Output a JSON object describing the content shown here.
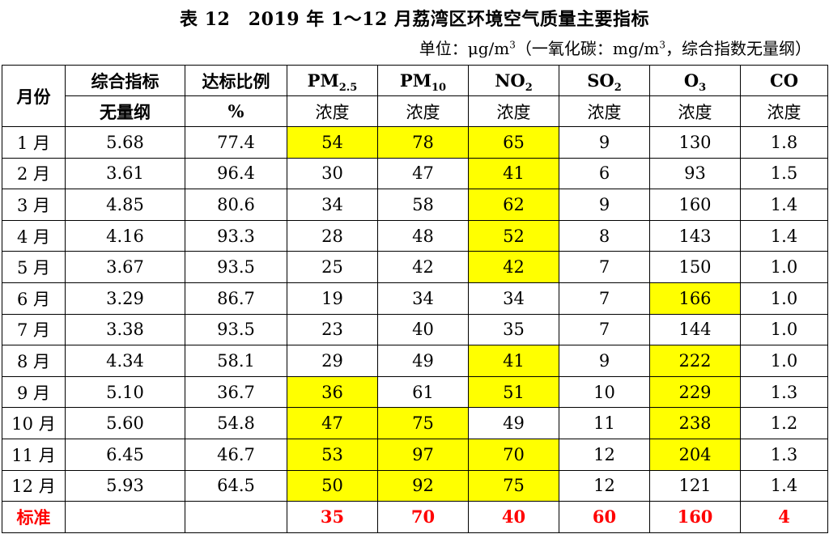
{
  "title": "表 12　2019 年 1～12 月荔湾区环境空气质量主要指标",
  "unit": {
    "prefix": "单位：μg/m",
    "sup1": "3",
    "middle": "（一氧化碳：mg/m",
    "sup2": "3",
    "suffix": "，综合指数无量纲）"
  },
  "header": {
    "month": "月份",
    "composite_top": "综合指标",
    "composite_bottom": "无量纲",
    "ratio_top": "达标比例",
    "ratio_bottom": "%",
    "pm25_base": "PM",
    "pm25_sub": "2.5",
    "pm10_base": "PM",
    "pm10_sub": "10",
    "no2_base": "NO",
    "no2_sub": "2",
    "so2_base": "SO",
    "so2_sub": "2",
    "o3_base": "O",
    "o3_sub": "3",
    "co": "CO",
    "concentration": "浓度"
  },
  "rows": [
    {
      "month": "1 月",
      "values": [
        "5.68",
        "77.4",
        "54",
        "78",
        "65",
        "9",
        "130",
        "1.8"
      ],
      "highlight": [
        false,
        false,
        true,
        true,
        true,
        false,
        false,
        false
      ]
    },
    {
      "month": "2 月",
      "values": [
        "3.61",
        "96.4",
        "30",
        "47",
        "41",
        "6",
        "93",
        "1.5"
      ],
      "highlight": [
        false,
        false,
        false,
        false,
        true,
        false,
        false,
        false
      ]
    },
    {
      "month": "3 月",
      "values": [
        "4.85",
        "80.6",
        "34",
        "58",
        "62",
        "9",
        "160",
        "1.4"
      ],
      "highlight": [
        false,
        false,
        false,
        false,
        true,
        false,
        false,
        false
      ]
    },
    {
      "month": "4 月",
      "values": [
        "4.16",
        "93.3",
        "28",
        "48",
        "52",
        "8",
        "143",
        "1.4"
      ],
      "highlight": [
        false,
        false,
        false,
        false,
        true,
        false,
        false,
        false
      ]
    },
    {
      "month": "5 月",
      "values": [
        "3.67",
        "93.5",
        "25",
        "42",
        "42",
        "7",
        "150",
        "1.0"
      ],
      "highlight": [
        false,
        false,
        false,
        false,
        true,
        false,
        false,
        false
      ]
    },
    {
      "month": "6 月",
      "values": [
        "3.29",
        "86.7",
        "19",
        "34",
        "34",
        "7",
        "166",
        "1.0"
      ],
      "highlight": [
        false,
        false,
        false,
        false,
        false,
        false,
        true,
        false
      ]
    },
    {
      "month": "7 月",
      "values": [
        "3.38",
        "93.5",
        "23",
        "40",
        "35",
        "7",
        "144",
        "1.0"
      ],
      "highlight": [
        false,
        false,
        false,
        false,
        false,
        false,
        false,
        false
      ]
    },
    {
      "month": "8 月",
      "values": [
        "4.34",
        "58.1",
        "29",
        "49",
        "41",
        "9",
        "222",
        "1.0"
      ],
      "highlight": [
        false,
        false,
        false,
        false,
        true,
        false,
        true,
        false
      ]
    },
    {
      "month": "9 月",
      "values": [
        "5.10",
        "36.7",
        "36",
        "61",
        "51",
        "10",
        "229",
        "1.3"
      ],
      "highlight": [
        false,
        false,
        true,
        false,
        true,
        false,
        true,
        false
      ]
    },
    {
      "month": "10 月",
      "values": [
        "5.60",
        "54.8",
        "47",
        "75",
        "49",
        "11",
        "238",
        "1.2"
      ],
      "highlight": [
        false,
        false,
        true,
        true,
        false,
        false,
        true,
        false
      ]
    },
    {
      "month": "11 月",
      "values": [
        "6.45",
        "46.7",
        "53",
        "97",
        "70",
        "12",
        "204",
        "1.3"
      ],
      "highlight": [
        false,
        false,
        true,
        true,
        true,
        false,
        true,
        false
      ]
    },
    {
      "month": "12 月",
      "values": [
        "5.93",
        "64.5",
        "50",
        "92",
        "75",
        "12",
        "121",
        "1.4"
      ],
      "highlight": [
        false,
        false,
        true,
        true,
        true,
        false,
        false,
        false
      ]
    }
  ],
  "standard": {
    "label": "标准",
    "values": [
      "",
      "",
      "35",
      "70",
      "40",
      "60",
      "160",
      "4"
    ]
  },
  "colors": {
    "highlight": "#ffff00",
    "standard_text": "#ff0000"
  }
}
